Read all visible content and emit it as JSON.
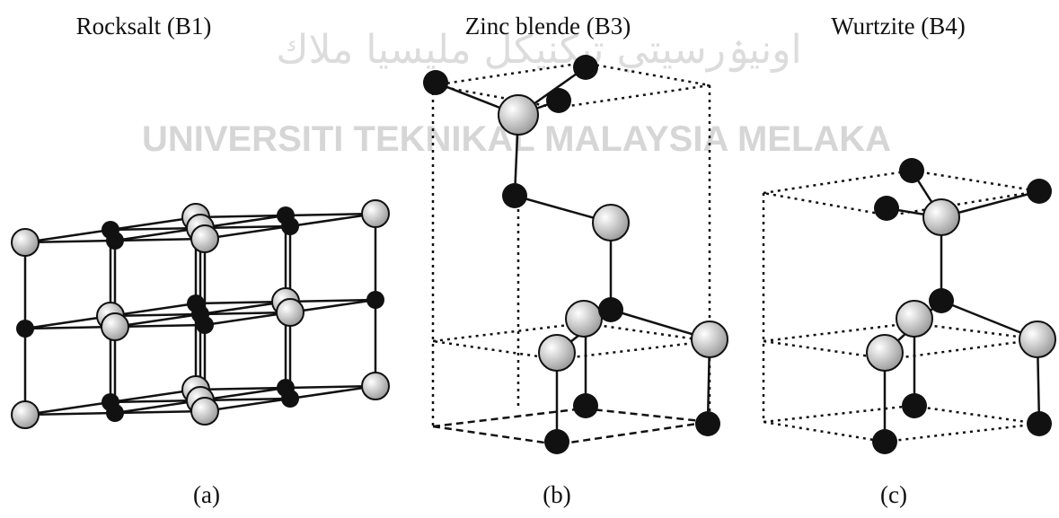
{
  "panels": [
    {
      "title": "Rocksalt (B1)",
      "label": "(a)"
    },
    {
      "title": "Zinc blende (B3)",
      "label": "(b)"
    },
    {
      "title": "Wurtzite (B4)",
      "label": "(c)"
    }
  ],
  "watermark": {
    "text": "UNIVERSITI TEKNIKAL MALAYSIA MELAKA",
    "script_text": "اونيۏرسيتي تيكنيكل مليسيا ملاك"
  }
}
